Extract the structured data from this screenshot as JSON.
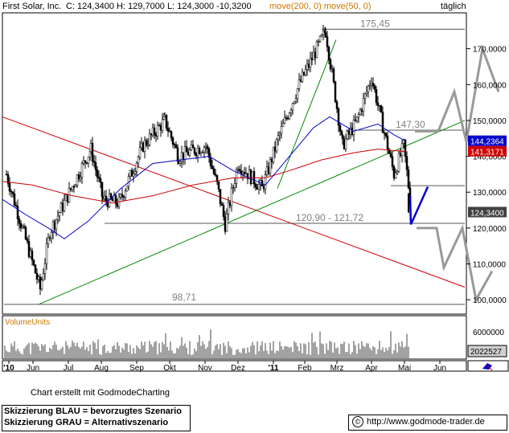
{
  "header": {
    "instrument": "First Solar, Inc.",
    "quote": "C: 124,3400 H: 129,7000 L: 124,3000 -10,3200",
    "indicators": "move(200, 0) move(50, 0)",
    "period": "täglich"
  },
  "footer": {
    "credit": "Chart erstellt mit GodmodeCharting",
    "legend_blue": "Skizzierung BLAU = bevorzugtes Szenario",
    "legend_gray": "Skizzierung GRAU = Alternativszenario",
    "url": "http://www.godmode-trader.de",
    "copyright_symbol": "©"
  },
  "chart_data": {
    "type": "candlestick",
    "title": "First Solar, Inc.",
    "period": "täglich",
    "y_axis": {
      "ticks": [
        "170,0000",
        "160,0000",
        "150,0000",
        "140,0000",
        "130,0000",
        "120,0000",
        "110,0000",
        "100,0000"
      ],
      "range": [
        96,
        180
      ]
    },
    "x_axis": {
      "ticks": [
        "'10",
        "Jun",
        "Jul",
        "Aug",
        "Sep",
        "Okt",
        "Nov",
        "Dez",
        "'11",
        "Feb",
        "Mrz",
        "Apr",
        "Mai",
        "Jun"
      ]
    },
    "price_path": [
      {
        "month": "'10",
        "close": 135
      },
      {
        "month": "Jun",
        "close": 103
      },
      {
        "month": "Jun",
        "close": 119
      },
      {
        "month": "Jul",
        "close": 142
      },
      {
        "month": "Aug",
        "close": 128
      },
      {
        "month": "Sep",
        "close": 127
      },
      {
        "month": "Sep",
        "close": 143
      },
      {
        "month": "Okt",
        "close": 150
      },
      {
        "month": "Okt",
        "close": 140
      },
      {
        "month": "Nov",
        "close": 143
      },
      {
        "month": "Nov",
        "close": 132
      },
      {
        "month": "Dez",
        "close": 121
      },
      {
        "month": "Dez",
        "close": 138
      },
      {
        "month": "'11",
        "close": 131
      },
      {
        "month": "'11",
        "close": 145
      },
      {
        "month": "Feb",
        "close": 160
      },
      {
        "month": "Feb",
        "close": 175
      },
      {
        "month": "Mrz",
        "close": 143
      },
      {
        "month": "Mrz",
        "close": 150
      },
      {
        "month": "Apr",
        "close": 162
      },
      {
        "month": "Apr",
        "close": 135
      },
      {
        "month": "Mai",
        "close": 143
      },
      {
        "month": "Mai",
        "close": 124.34
      }
    ],
    "series": [
      {
        "name": "move(200, 0)",
        "color": "#cc0000"
      },
      {
        "name": "move(50, 0)",
        "color": "#0000cc"
      }
    ],
    "value_labels": [
      {
        "text": "144,2364",
        "value": 144.2364,
        "color": "#0000cc"
      },
      {
        "text": "141,3171",
        "value": 141.3171,
        "color": "#cc0000"
      },
      {
        "text": "124,3400",
        "value": 124.34,
        "color": "#404040"
      }
    ],
    "annotations": [
      {
        "text": "175,45",
        "value": 175.45
      },
      {
        "text": "147,30",
        "value": 147.3
      },
      {
        "text": "120,90 - 121,72",
        "value": 121.3
      },
      {
        "text": "98,71",
        "value": 98.71
      }
    ],
    "scenarios": {
      "preferred_color": "#0000cc",
      "alternative_color": "#999999"
    },
    "volume": {
      "label": "VolumeUnits",
      "ticks": [
        "6000000"
      ],
      "last": "2022527"
    }
  }
}
